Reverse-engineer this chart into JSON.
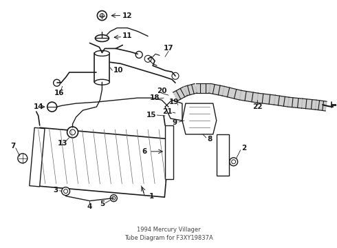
{
  "title": "1994 Mercury Villager",
  "subtitle": "Tube Diagram for F3XY19837A",
  "background_color": "#ffffff",
  "line_color": "#1a1a1a",
  "label_color": "#000000",
  "fig_width": 4.9,
  "fig_height": 3.6,
  "dpi": 100
}
